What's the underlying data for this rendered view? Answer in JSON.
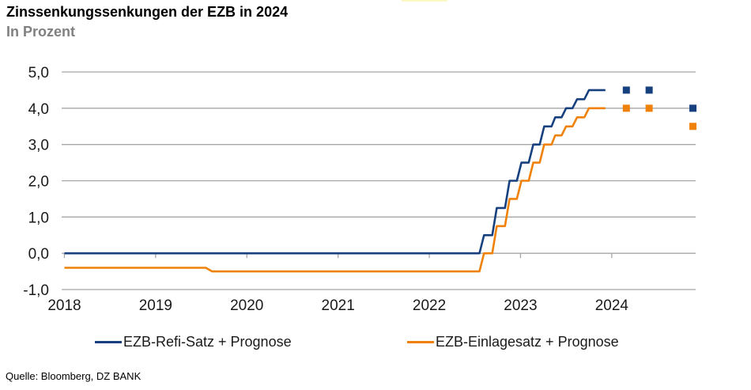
{
  "header": {
    "title": "Zinssenkungssenkungen der EZB in 2024",
    "subtitle": "In Prozent"
  },
  "decorations": {
    "top_highlight_color": "#FBF8C4"
  },
  "chart_data": {
    "type": "line",
    "title": "Zinssenkungssenkungen der EZB in 2024",
    "subtitle": "In Prozent",
    "xlabel": "",
    "ylabel": "In Prozent",
    "grid": true,
    "grid_color": "#A6A6A6",
    "axis_text_color": "#1a1a1a",
    "legend_position": "bottom",
    "x_axis": {
      "range": [
        2017.97,
        2024.92
      ],
      "tick_values": [
        2018,
        2019,
        2020,
        2021,
        2022,
        2023,
        2024
      ],
      "tick_labels": [
        "2018",
        "2019",
        "2020",
        "2021",
        "2022",
        "2023",
        "2024"
      ],
      "axis_at_y": 0
    },
    "y_axis": {
      "min": -1,
      "max": 5,
      "tick_values": [
        5,
        4,
        3,
        2,
        1,
        0,
        -1
      ],
      "tick_labels": [
        "5,0",
        "4,0",
        "3,0",
        "2,0",
        "1,0",
        "0,0",
        "-1,0"
      ]
    },
    "series": [
      {
        "name": "EZB-Refi-Satz + Prognose",
        "color": "#17407E",
        "points": [
          [
            2018.0,
            0.0
          ],
          [
            2022.55,
            0.0
          ],
          [
            2022.6,
            0.5
          ],
          [
            2022.69,
            0.5
          ],
          [
            2022.74,
            1.25
          ],
          [
            2022.83,
            1.25
          ],
          [
            2022.88,
            2.0
          ],
          [
            2022.96,
            2.0
          ],
          [
            2023.01,
            2.5
          ],
          [
            2023.09,
            2.5
          ],
          [
            2023.14,
            3.0
          ],
          [
            2023.21,
            3.0
          ],
          [
            2023.26,
            3.5
          ],
          [
            2023.34,
            3.5
          ],
          [
            2023.38,
            3.75
          ],
          [
            2023.45,
            3.75
          ],
          [
            2023.5,
            4.0
          ],
          [
            2023.57,
            4.0
          ],
          [
            2023.62,
            4.25
          ],
          [
            2023.7,
            4.25
          ],
          [
            2023.75,
            4.5
          ],
          [
            2023.93,
            4.5
          ]
        ],
        "forecast_points": [
          [
            2024.16,
            4.5
          ],
          [
            2024.41,
            4.5
          ],
          [
            2024.89,
            4.0
          ]
        ]
      },
      {
        "name": "EZB-Einlagesatz + Prognose",
        "color": "#EF8108",
        "points": [
          [
            2018.0,
            -0.4
          ],
          [
            2019.55,
            -0.4
          ],
          [
            2019.62,
            -0.5
          ],
          [
            2022.55,
            -0.5
          ],
          [
            2022.6,
            0.0
          ],
          [
            2022.69,
            0.0
          ],
          [
            2022.74,
            0.75
          ],
          [
            2022.83,
            0.75
          ],
          [
            2022.88,
            1.5
          ],
          [
            2022.96,
            1.5
          ],
          [
            2023.01,
            2.0
          ],
          [
            2023.09,
            2.0
          ],
          [
            2023.14,
            2.5
          ],
          [
            2023.21,
            2.5
          ],
          [
            2023.26,
            3.0
          ],
          [
            2023.34,
            3.0
          ],
          [
            2023.38,
            3.25
          ],
          [
            2023.45,
            3.25
          ],
          [
            2023.5,
            3.5
          ],
          [
            2023.57,
            3.5
          ],
          [
            2023.62,
            3.75
          ],
          [
            2023.7,
            3.75
          ],
          [
            2023.75,
            4.0
          ],
          [
            2023.93,
            4.0
          ]
        ],
        "forecast_points": [
          [
            2024.16,
            4.0
          ],
          [
            2024.41,
            4.0
          ],
          [
            2024.89,
            3.5
          ]
        ]
      }
    ]
  },
  "legend": {
    "items": [
      {
        "label": "EZB-Refi-Satz + Prognose"
      },
      {
        "label": "EZB-Einlagesatz + Prognose"
      }
    ]
  },
  "footer": {
    "source": "Quelle: Bloomberg, DZ BANK"
  }
}
